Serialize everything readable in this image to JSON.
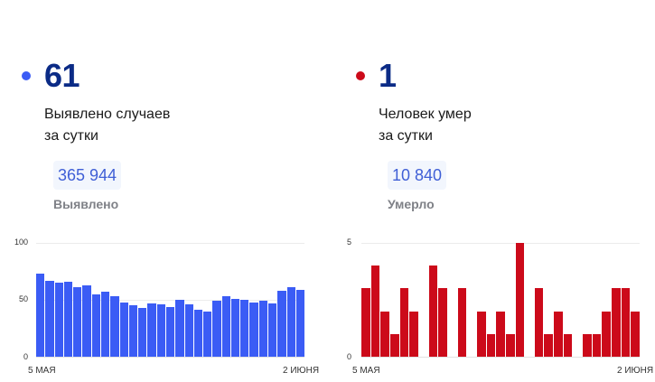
{
  "cases": {
    "dot_color": "#3b5cf5",
    "value": "61",
    "description_line1": "Выявлено случаев",
    "description_line2": "за сутки",
    "total": "365 944",
    "total_label": "Выявлено"
  },
  "deaths": {
    "dot_color": "#cc0a1a",
    "value": "1",
    "description_line1": "Человек умер",
    "description_line2": "за сутки",
    "total": "10 840",
    "total_label": "Умерло"
  },
  "chart_data": [
    {
      "type": "bar",
      "title": "Выявлено случаев за сутки",
      "xlabel": "",
      "ylabel": "",
      "x_start_label": "5 МАЯ",
      "x_end_label": "2 ИЮНЯ",
      "yticks": [
        "100",
        "50",
        "0"
      ],
      "ylim": [
        0,
        100
      ],
      "grid": true,
      "color": "#3b5cf5",
      "categories": [
        "5 мая",
        "6 мая",
        "7 мая",
        "8 мая",
        "9 мая",
        "10 мая",
        "11 мая",
        "12 мая",
        "13 мая",
        "14 мая",
        "15 мая",
        "16 мая",
        "17 мая",
        "18 мая",
        "19 мая",
        "20 мая",
        "21 мая",
        "22 мая",
        "23 мая",
        "24 мая",
        "25 мая",
        "26 мая",
        "27 мая",
        "28 мая",
        "29 мая",
        "30 мая",
        "31 мая",
        "1 июня",
        "2 июня"
      ],
      "values": [
        73,
        67,
        65,
        66,
        61,
        63,
        55,
        57,
        53,
        48,
        45,
        43,
        47,
        46,
        44,
        50,
        46,
        41,
        40,
        49,
        53,
        51,
        50,
        48,
        49,
        47,
        58,
        61,
        59
      ]
    },
    {
      "type": "bar",
      "title": "Человек умер за сутки",
      "xlabel": "",
      "ylabel": "",
      "x_start_label": "5 МАЯ",
      "x_end_label": "2 ИЮНЯ",
      "yticks": [
        "5",
        "0"
      ],
      "ylim": [
        0,
        5
      ],
      "grid": true,
      "color": "#cc0a1a",
      "categories": [
        "5 мая",
        "6 мая",
        "7 мая",
        "8 мая",
        "9 мая",
        "10 мая",
        "11 мая",
        "12 мая",
        "13 мая",
        "14 мая",
        "15 мая",
        "16 мая",
        "17 мая",
        "18 мая",
        "19 мая",
        "20 мая",
        "21 мая",
        "22 мая",
        "23 мая",
        "24 мая",
        "25 мая",
        "26 мая",
        "27 мая",
        "28 мая",
        "29 мая",
        "30 мая",
        "31 мая",
        "1 июня",
        "2 июня"
      ],
      "values": [
        3,
        4,
        2,
        1,
        3,
        2,
        0,
        4,
        3,
        0,
        3,
        0,
        2,
        1,
        2,
        1,
        5,
        0,
        3,
        1,
        2,
        1,
        0,
        1,
        1,
        2,
        3,
        3,
        2
      ]
    }
  ]
}
